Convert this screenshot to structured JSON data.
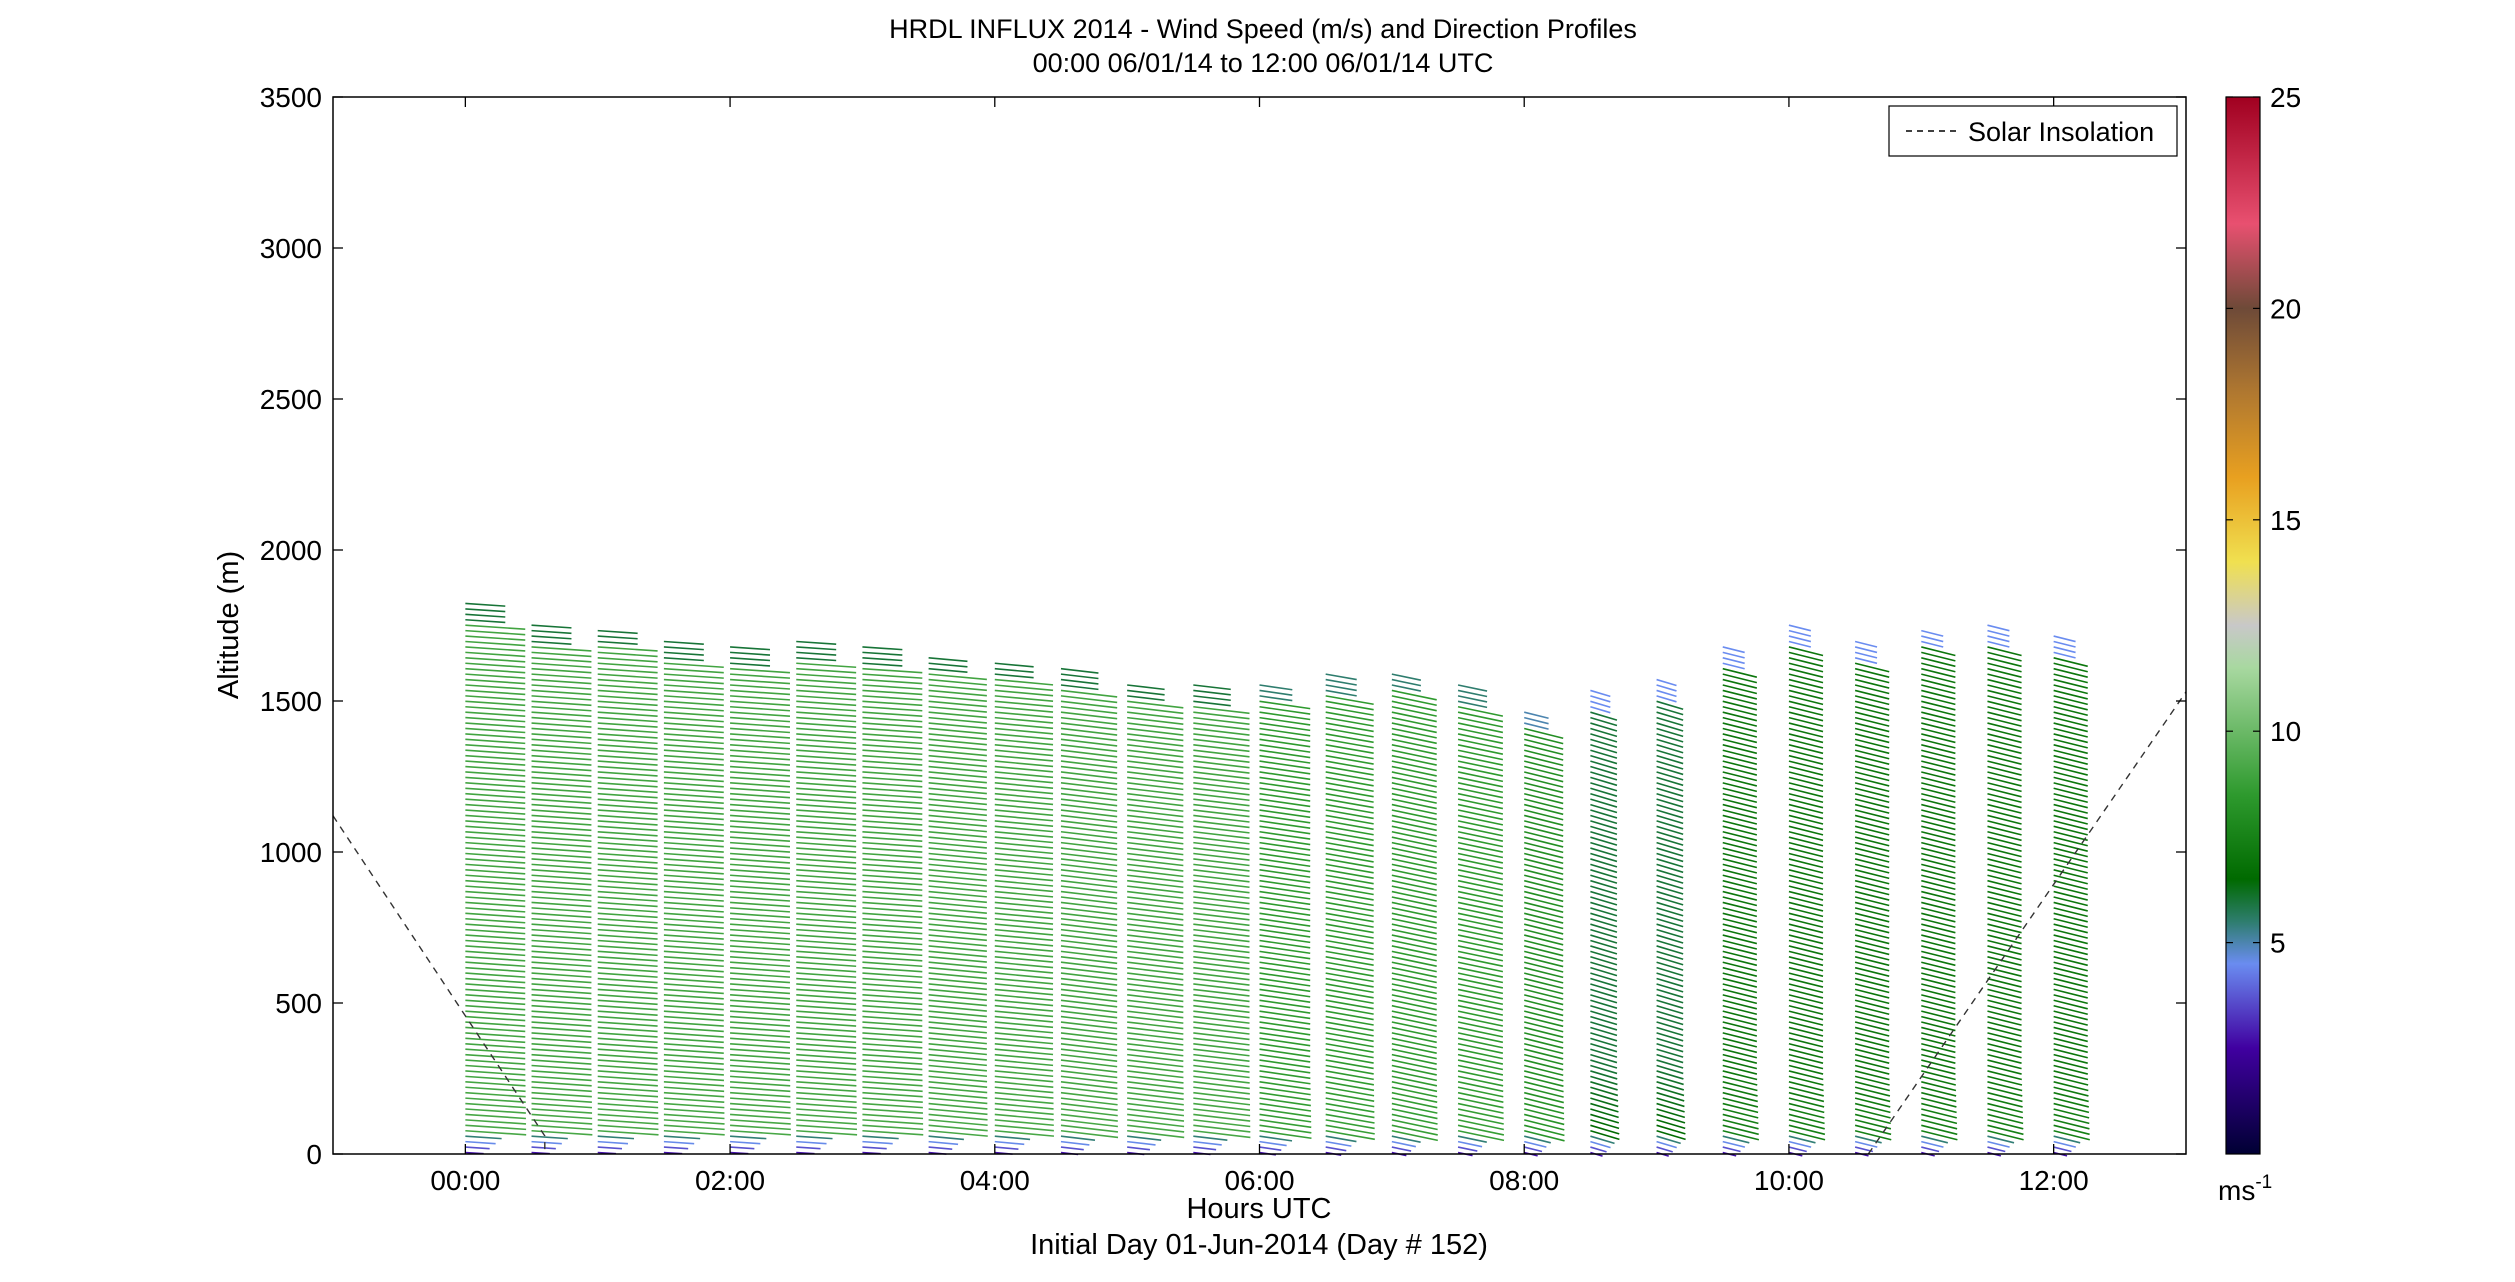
{
  "chart_data": {
    "type": "wind-barb profile",
    "title": "HRDL INFLUX 2014 - Wind Speed (m/s) and Direction Profiles",
    "subtitle": "00:00 06/01/14 to 12:00 06/01/14  UTC",
    "xlabel": "Hours UTC",
    "xlabel2": "Initial Day 01-Jun-2014 (Day # 152)",
    "ylabel": "Altitude (m)",
    "xlim_hours": [
      -1.0,
      13.0
    ],
    "ylim": [
      0,
      3500
    ],
    "xticks": [
      {
        "value": 0,
        "label": "00:00"
      },
      {
        "value": 2,
        "label": "02:00"
      },
      {
        "value": 4,
        "label": "04:00"
      },
      {
        "value": 6,
        "label": "06:00"
      },
      {
        "value": 8,
        "label": "08:00"
      },
      {
        "value": 10,
        "label": "10:00"
      },
      {
        "value": 12,
        "label": "12:00"
      }
    ],
    "yticks": [
      {
        "value": 0,
        "label": "0"
      },
      {
        "value": 500,
        "label": "500"
      },
      {
        "value": 1000,
        "label": "1000"
      },
      {
        "value": 1500,
        "label": "1500"
      },
      {
        "value": 2000,
        "label": "2000"
      },
      {
        "value": 2500,
        "label": "2500"
      },
      {
        "value": 3000,
        "label": "3000"
      },
      {
        "value": 3500,
        "label": "3500"
      }
    ],
    "legend": {
      "label": "Solar Insolation",
      "placement": "top-right",
      "style": "dashed"
    },
    "colorbar": {
      "min": 0,
      "max": 25,
      "ticks": [
        {
          "value": 5,
          "label": "5"
        },
        {
          "value": 10,
          "label": "10"
        },
        {
          "value": 15,
          "label": "15"
        },
        {
          "value": 20,
          "label": "20"
        },
        {
          "value": 25,
          "label": "25"
        }
      ],
      "unit_base": "ms",
      "unit_exp": "-1",
      "colormap": [
        {
          "v": 0,
          "c": "#000033"
        },
        {
          "v": 2.5,
          "c": "#4000a0"
        },
        {
          "v": 4.5,
          "c": "#6a8cf0"
        },
        {
          "v": 5.5,
          "c": "#2e7d6e"
        },
        {
          "v": 6.5,
          "c": "#006a00"
        },
        {
          "v": 8.5,
          "c": "#2e9a2e"
        },
        {
          "v": 11.5,
          "c": "#a8d8a0"
        },
        {
          "v": 12.5,
          "c": "#c8c8c8"
        },
        {
          "v": 14,
          "c": "#f0e050"
        },
        {
          "v": 16,
          "c": "#e8a020"
        },
        {
          "v": 18,
          "c": "#b07830"
        },
        {
          "v": 20,
          "c": "#6e4a38"
        },
        {
          "v": 22,
          "c": "#e85070"
        },
        {
          "v": 25,
          "c": "#a00020"
        }
      ]
    },
    "solar_insolation": {
      "points": [
        [
          -1.0,
          1120
        ],
        [
          0.6,
          60
        ],
        [
          0.6,
          0
        ]
      ],
      "points_evening": [
        [
          10.6,
          0
        ],
        [
          13.0,
          1530
        ]
      ]
    },
    "profiles": [
      {
        "t": 0.0,
        "top": 1830,
        "dir": 255,
        "spd": 9.0
      },
      {
        "t": 0.5,
        "top": 1760,
        "dir": 255,
        "spd": 9.0
      },
      {
        "t": 1.0,
        "top": 1750,
        "dir": 255,
        "spd": 9.0
      },
      {
        "t": 1.5,
        "top": 1710,
        "dir": 255,
        "spd": 9.0
      },
      {
        "t": 2.0,
        "top": 1690,
        "dir": 255,
        "spd": 9.0
      },
      {
        "t": 2.5,
        "top": 1700,
        "dir": 255,
        "spd": 9.0
      },
      {
        "t": 3.0,
        "top": 1680,
        "dir": 255,
        "spd": 9.0
      },
      {
        "t": 3.5,
        "top": 1660,
        "dir": 250,
        "spd": 9.0
      },
      {
        "t": 4.0,
        "top": 1640,
        "dir": 250,
        "spd": 9.0
      },
      {
        "t": 4.5,
        "top": 1610,
        "dir": 245,
        "spd": 9.0
      },
      {
        "t": 5.0,
        "top": 1570,
        "dir": 245,
        "spd": 9.0
      },
      {
        "t": 5.5,
        "top": 1560,
        "dir": 245,
        "spd": 9.0
      },
      {
        "t": 6.0,
        "top": 1570,
        "dir": 240,
        "spd": 8.5
      },
      {
        "t": 6.5,
        "top": 1590,
        "dir": 235,
        "spd": 8.5
      },
      {
        "t": 7.0,
        "top": 1600,
        "dir": 230,
        "spd": 8.5
      },
      {
        "t": 7.5,
        "top": 1560,
        "dir": 230,
        "spd": 8.5
      },
      {
        "t": 8.0,
        "top": 1470,
        "dir": 225,
        "spd": 8.0
      },
      {
        "t": 8.5,
        "top": 1540,
        "dir": 220,
        "spd": 6.0
      },
      {
        "t": 9.0,
        "top": 1580,
        "dir": 220,
        "spd": 6.0
      },
      {
        "t": 9.5,
        "top": 1680,
        "dir": 225,
        "spd": 7.0
      },
      {
        "t": 10.0,
        "top": 1760,
        "dir": 225,
        "spd": 7.0
      },
      {
        "t": 10.5,
        "top": 1710,
        "dir": 225,
        "spd": 7.0
      },
      {
        "t": 11.0,
        "top": 1750,
        "dir": 225,
        "spd": 7.0
      },
      {
        "t": 11.5,
        "top": 1760,
        "dir": 225,
        "spd": 7.0
      },
      {
        "t": 12.0,
        "top": 1730,
        "dir": 225,
        "spd": 7.0
      }
    ]
  }
}
